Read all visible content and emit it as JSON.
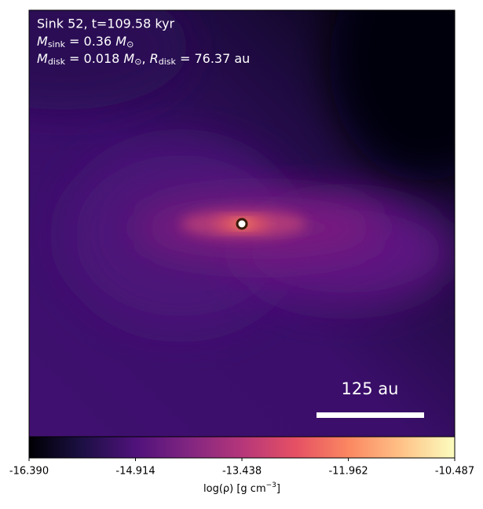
{
  "chart_data": {
    "type": "image",
    "title": "Sink 52, t=109.58 kyr",
    "mass_line": {
      "symbol": "M",
      "sub": "sink",
      "text": " = 0.36 ",
      "unit": "M",
      "unit_sub": "⊙"
    },
    "disk_line": {
      "symbol": "M",
      "sub": "disk",
      "text": " = 0.018 ",
      "unit": "M",
      "unit_sub": "⊙",
      "sep": ", ",
      "r_symbol": "R",
      "r_sub": "disk",
      "r_text": " = 76.37 au"
    },
    "scale_bar_label": "125 au",
    "colorbar_label": [
      "log(ρ) [g cm",
      "−3",
      "]"
    ],
    "colormap": [
      "#000004",
      "#1c1044",
      "#4f127b",
      "#812581",
      "#b5367a",
      "#e55064",
      "#fb8761",
      "#fec287",
      "#fcfdbf"
    ],
    "clim": [
      -16.39,
      -10.487
    ],
    "cticks": [
      {
        "value": -16.39,
        "label": "-16.390"
      },
      -14.914,
      -13.438,
      -11.962,
      -10.487
    ]
  }
}
